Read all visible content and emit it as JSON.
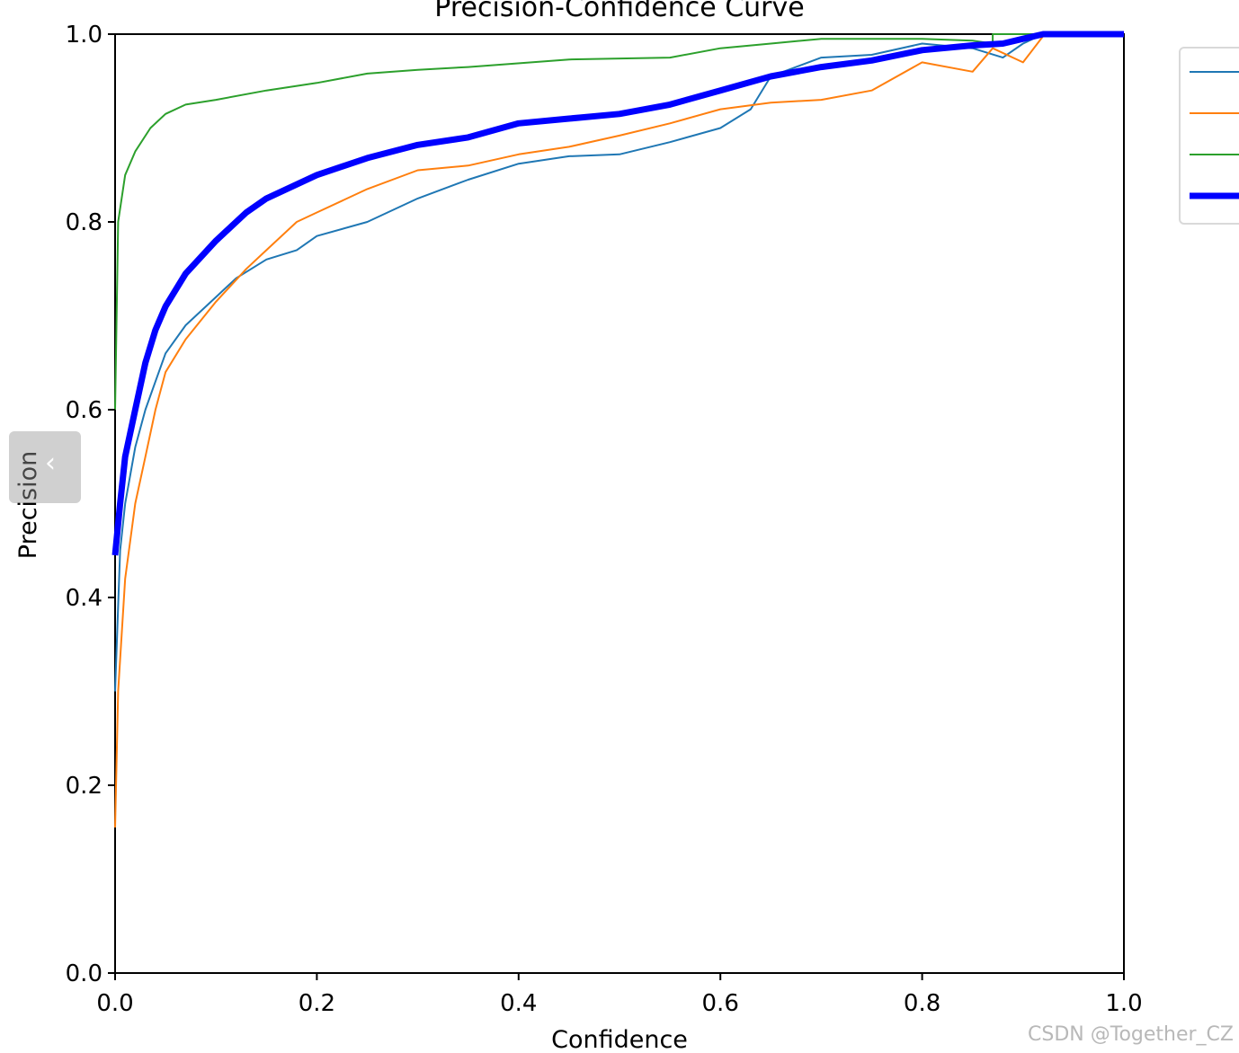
{
  "chart_data": {
    "type": "line",
    "title": "Precision-Confidence Curve",
    "xlabel": "Confidence",
    "ylabel": "Precision",
    "xlim": [
      0,
      1
    ],
    "ylim": [
      0,
      1
    ],
    "x_ticks": [
      "0.0",
      "0.2",
      "0.4",
      "0.6",
      "0.8",
      "1.0"
    ],
    "y_ticks": [
      "0.0",
      "0.2",
      "0.4",
      "0.6",
      "0.8",
      "1.0"
    ],
    "grid": false,
    "legend_position": "top-right (outside plot, partially cropped)",
    "series": [
      {
        "color": "#1f77b4",
        "width": 2,
        "points": [
          [
            0,
            0.3
          ],
          [
            0.005,
            0.45
          ],
          [
            0.01,
            0.5
          ],
          [
            0.02,
            0.56
          ],
          [
            0.03,
            0.6
          ],
          [
            0.04,
            0.63
          ],
          [
            0.05,
            0.66
          ],
          [
            0.07,
            0.69
          ],
          [
            0.1,
            0.72
          ],
          [
            0.12,
            0.74
          ],
          [
            0.15,
            0.76
          ],
          [
            0.18,
            0.77
          ],
          [
            0.2,
            0.785
          ],
          [
            0.25,
            0.8
          ],
          [
            0.3,
            0.825
          ],
          [
            0.35,
            0.845
          ],
          [
            0.4,
            0.862
          ],
          [
            0.45,
            0.87
          ],
          [
            0.5,
            0.872
          ],
          [
            0.55,
            0.885
          ],
          [
            0.6,
            0.9
          ],
          [
            0.63,
            0.92
          ],
          [
            0.65,
            0.955
          ],
          [
            0.7,
            0.975
          ],
          [
            0.75,
            0.978
          ],
          [
            0.8,
            0.99
          ],
          [
            0.85,
            0.985
          ],
          [
            0.88,
            0.975
          ],
          [
            0.9,
            0.99
          ],
          [
            0.92,
            1.0
          ],
          [
            1.0,
            1.0
          ]
        ]
      },
      {
        "color": "#ff7f0e",
        "width": 2,
        "points": [
          [
            0,
            0.155
          ],
          [
            0.003,
            0.3
          ],
          [
            0.01,
            0.42
          ],
          [
            0.02,
            0.5
          ],
          [
            0.03,
            0.55
          ],
          [
            0.04,
            0.6
          ],
          [
            0.05,
            0.64
          ],
          [
            0.07,
            0.675
          ],
          [
            0.1,
            0.715
          ],
          [
            0.13,
            0.75
          ],
          [
            0.15,
            0.77
          ],
          [
            0.18,
            0.8
          ],
          [
            0.2,
            0.81
          ],
          [
            0.25,
            0.835
          ],
          [
            0.3,
            0.855
          ],
          [
            0.35,
            0.86
          ],
          [
            0.4,
            0.872
          ],
          [
            0.45,
            0.88
          ],
          [
            0.5,
            0.892
          ],
          [
            0.55,
            0.905
          ],
          [
            0.6,
            0.92
          ],
          [
            0.65,
            0.927
          ],
          [
            0.7,
            0.93
          ],
          [
            0.75,
            0.94
          ],
          [
            0.8,
            0.97
          ],
          [
            0.85,
            0.96
          ],
          [
            0.87,
            0.985
          ],
          [
            0.9,
            0.97
          ],
          [
            0.92,
            0.998
          ],
          [
            1.0,
            1.0
          ]
        ]
      },
      {
        "color": "#2ca02c",
        "width": 2,
        "points": [
          [
            0,
            0.6
          ],
          [
            0.003,
            0.8
          ],
          [
            0.01,
            0.85
          ],
          [
            0.02,
            0.875
          ],
          [
            0.035,
            0.9
          ],
          [
            0.05,
            0.915
          ],
          [
            0.07,
            0.925
          ],
          [
            0.1,
            0.93
          ],
          [
            0.15,
            0.94
          ],
          [
            0.2,
            0.948
          ],
          [
            0.25,
            0.958
          ],
          [
            0.3,
            0.962
          ],
          [
            0.35,
            0.965
          ],
          [
            0.45,
            0.973
          ],
          [
            0.55,
            0.975
          ],
          [
            0.6,
            0.985
          ],
          [
            0.65,
            0.99
          ],
          [
            0.7,
            0.995
          ],
          [
            0.8,
            0.995
          ],
          [
            0.85,
            0.993
          ],
          [
            0.87,
            0.99
          ],
          [
            0.87,
            1.0
          ],
          [
            1.0,
            1.0
          ]
        ]
      },
      {
        "color": "#0000ff",
        "width": 7,
        "points": [
          [
            0,
            0.445
          ],
          [
            0.005,
            0.5
          ],
          [
            0.01,
            0.55
          ],
          [
            0.02,
            0.6
          ],
          [
            0.03,
            0.65
          ],
          [
            0.04,
            0.685
          ],
          [
            0.05,
            0.71
          ],
          [
            0.07,
            0.745
          ],
          [
            0.1,
            0.78
          ],
          [
            0.13,
            0.81
          ],
          [
            0.15,
            0.825
          ],
          [
            0.2,
            0.85
          ],
          [
            0.25,
            0.868
          ],
          [
            0.3,
            0.882
          ],
          [
            0.35,
            0.89
          ],
          [
            0.4,
            0.905
          ],
          [
            0.45,
            0.91
          ],
          [
            0.5,
            0.915
          ],
          [
            0.55,
            0.925
          ],
          [
            0.6,
            0.94
          ],
          [
            0.65,
            0.955
          ],
          [
            0.7,
            0.965
          ],
          [
            0.75,
            0.972
          ],
          [
            0.8,
            0.983
          ],
          [
            0.85,
            0.988
          ],
          [
            0.88,
            0.99
          ],
          [
            0.9,
            0.995
          ],
          [
            0.92,
            1.0
          ],
          [
            1.0,
            1.0
          ]
        ]
      }
    ]
  },
  "watermark": "CSDN @Together_CZ",
  "scroll_handle_glyph": "‹"
}
